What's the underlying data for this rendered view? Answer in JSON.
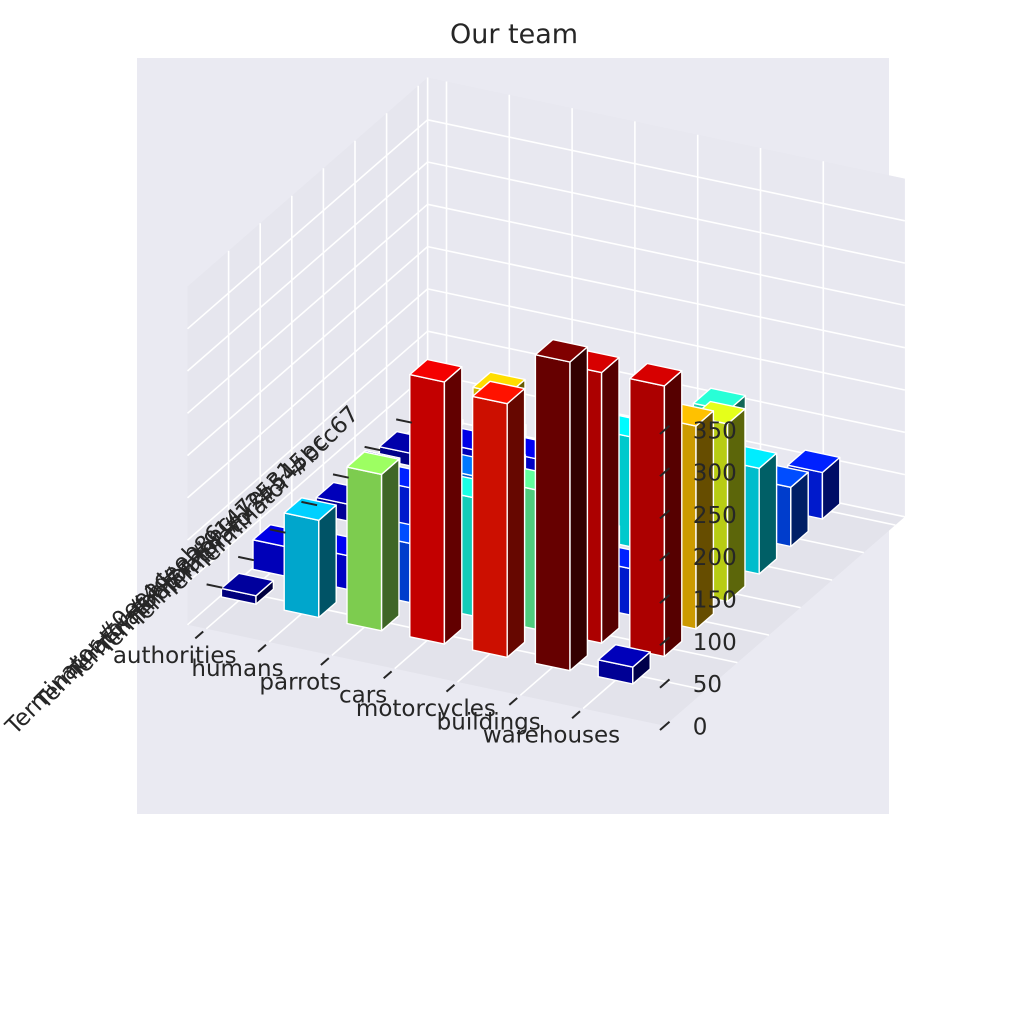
{
  "chart_data": {
    "type": "bar3d",
    "title": "Our team",
    "x_categories": [
      "Terminator #bcc67",
      "Terminator #545ec",
      "Terminator #12531",
      "Terminator #9147e",
      "Terminator #aa86c",
      "Terminator #4deeb",
      "Terminator #0eeac"
    ],
    "y_categories": [
      "authorities",
      "humans",
      "parrots",
      "cars",
      "motorcycles",
      "buildings",
      "warehouses"
    ],
    "z_ticks": [
      "0",
      "50",
      "100",
      "150",
      "200",
      "250",
      "300",
      "350"
    ],
    "zlim": [
      0,
      350
    ],
    "values": [
      [
        5,
        15,
        20,
        25,
        30,
        40,
        55
      ],
      [
        15,
        35,
        40,
        20,
        35,
        145,
        70
      ],
      [
        25,
        40,
        60,
        105,
        130,
        65,
        125
      ],
      [
        20,
        55,
        85,
        65,
        40,
        75,
        210
      ],
      [
        5,
        20,
        45,
        230,
        265,
        55,
        240
      ],
      [
        35,
        40,
        70,
        140,
        165,
        320,
        320
      ],
      [
        10,
        115,
        185,
        310,
        300,
        365,
        20
      ]
    ],
    "colormap": "jet",
    "grid": true
  }
}
